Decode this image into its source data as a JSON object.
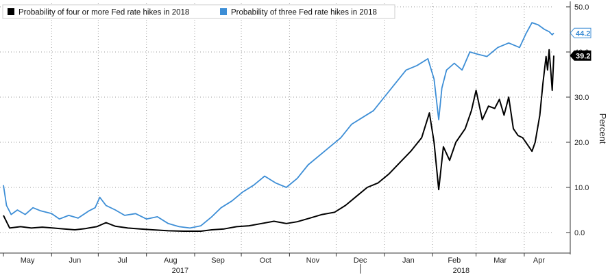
{
  "chart_data": {
    "type": "line",
    "title": "",
    "xlabel": "",
    "ylabel": "Percent",
    "ylim": [
      0,
      50
    ],
    "y_axis_side": "right",
    "y_ticks": [
      "0.0",
      "10.0",
      "20.0",
      "30.0",
      "40.0",
      "50.0"
    ],
    "x_month_labels": [
      "May",
      "Jun",
      "Jul",
      "Aug",
      "Sep",
      "Oct",
      "Nov",
      "Dec",
      "Jan",
      "Feb",
      "Mar",
      "Apr"
    ],
    "x_year_labels": [
      "2017",
      "2018"
    ],
    "grid": true,
    "legend_position": "top-left",
    "x_domain": [
      "2017-05-01",
      "2018-04-20"
    ],
    "series": [
      {
        "name": "Probability of four or more Fed rate hikes in 2018",
        "color": "#000000",
        "last_value_label": "39.2",
        "points": [
          [
            "2017-05-01",
            3.8
          ],
          [
            "2017-05-05",
            1.0
          ],
          [
            "2017-05-12",
            1.3
          ],
          [
            "2017-05-19",
            1.0
          ],
          [
            "2017-05-26",
            1.2
          ],
          [
            "2017-06-02",
            1.0
          ],
          [
            "2017-06-09",
            0.8
          ],
          [
            "2017-06-16",
            0.6
          ],
          [
            "2017-06-23",
            0.9
          ],
          [
            "2017-06-30",
            1.3
          ],
          [
            "2017-07-06",
            2.2
          ],
          [
            "2017-07-12",
            1.4
          ],
          [
            "2017-07-20",
            1.0
          ],
          [
            "2017-07-28",
            0.8
          ],
          [
            "2017-08-05",
            0.6
          ],
          [
            "2017-08-15",
            0.4
          ],
          [
            "2017-08-25",
            0.3
          ],
          [
            "2017-09-05",
            0.3
          ],
          [
            "2017-09-12",
            0.6
          ],
          [
            "2017-09-20",
            0.8
          ],
          [
            "2017-09-28",
            1.3
          ],
          [
            "2017-10-06",
            1.5
          ],
          [
            "2017-10-14",
            2.0
          ],
          [
            "2017-10-22",
            2.5
          ],
          [
            "2017-10-30",
            2.0
          ],
          [
            "2017-11-06",
            2.4
          ],
          [
            "2017-11-14",
            3.2
          ],
          [
            "2017-11-22",
            4.0
          ],
          [
            "2017-11-30",
            4.5
          ],
          [
            "2017-12-07",
            6.0
          ],
          [
            "2017-12-14",
            8.0
          ],
          [
            "2017-12-21",
            10.0
          ],
          [
            "2017-12-28",
            11.0
          ],
          [
            "2018-01-04",
            13.0
          ],
          [
            "2018-01-11",
            15.5
          ],
          [
            "2018-01-18",
            18.0
          ],
          [
            "2018-01-25",
            21.0
          ],
          [
            "2018-01-30",
            26.5
          ],
          [
            "2018-02-02",
            20.0
          ],
          [
            "2018-02-05",
            9.5
          ],
          [
            "2018-02-08",
            19.0
          ],
          [
            "2018-02-12",
            16.0
          ],
          [
            "2018-02-16",
            20.0
          ],
          [
            "2018-02-22",
            23.0
          ],
          [
            "2018-02-26",
            27.0
          ],
          [
            "2018-03-01",
            31.5
          ],
          [
            "2018-03-05",
            25.0
          ],
          [
            "2018-03-09",
            28.0
          ],
          [
            "2018-03-13",
            27.5
          ],
          [
            "2018-03-16",
            29.5
          ],
          [
            "2018-03-19",
            26.0
          ],
          [
            "2018-03-22",
            30.0
          ],
          [
            "2018-03-25",
            23.0
          ],
          [
            "2018-03-28",
            21.5
          ],
          [
            "2018-03-31",
            21.0
          ],
          [
            "2018-04-04",
            19.0
          ],
          [
            "2018-04-06",
            18.0
          ],
          [
            "2018-04-08",
            20.0
          ],
          [
            "2018-04-11",
            26.0
          ],
          [
            "2018-04-13",
            33.0
          ],
          [
            "2018-04-15",
            39.0
          ],
          [
            "2018-04-16",
            36.0
          ],
          [
            "2018-04-17",
            40.5
          ],
          [
            "2018-04-18",
            36.0
          ],
          [
            "2018-04-19",
            31.5
          ],
          [
            "2018-04-20",
            39.2
          ]
        ]
      },
      {
        "name": "Probability of three Fed rate hikes in 2018",
        "color": "#3d8ed6",
        "last_value_label": "44.2",
        "points": [
          [
            "2017-05-01",
            10.5
          ],
          [
            "2017-05-03",
            6.0
          ],
          [
            "2017-05-06",
            4.0
          ],
          [
            "2017-05-10",
            5.0
          ],
          [
            "2017-05-15",
            4.0
          ],
          [
            "2017-05-20",
            5.5
          ],
          [
            "2017-05-25",
            4.8
          ],
          [
            "2017-06-01",
            4.2
          ],
          [
            "2017-06-06",
            3.0
          ],
          [
            "2017-06-12",
            3.8
          ],
          [
            "2017-06-18",
            3.2
          ],
          [
            "2017-06-25",
            4.8
          ],
          [
            "2017-06-29",
            5.5
          ],
          [
            "2017-07-02",
            7.8
          ],
          [
            "2017-07-06",
            6.0
          ],
          [
            "2017-07-12",
            5.0
          ],
          [
            "2017-07-18",
            3.8
          ],
          [
            "2017-07-25",
            4.2
          ],
          [
            "2017-08-01",
            3.0
          ],
          [
            "2017-08-08",
            3.5
          ],
          [
            "2017-08-15",
            2.0
          ],
          [
            "2017-08-22",
            1.3
          ],
          [
            "2017-08-29",
            1.0
          ],
          [
            "2017-09-05",
            1.5
          ],
          [
            "2017-09-12",
            3.5
          ],
          [
            "2017-09-18",
            5.5
          ],
          [
            "2017-09-25",
            7.0
          ],
          [
            "2017-10-02",
            9.0
          ],
          [
            "2017-10-09",
            10.5
          ],
          [
            "2017-10-16",
            12.5
          ],
          [
            "2017-10-23",
            11.0
          ],
          [
            "2017-10-30",
            10.0
          ],
          [
            "2017-11-06",
            12.0
          ],
          [
            "2017-11-13",
            15.0
          ],
          [
            "2017-11-20",
            17.0
          ],
          [
            "2017-11-27",
            19.0
          ],
          [
            "2017-12-04",
            21.0
          ],
          [
            "2017-12-11",
            24.0
          ],
          [
            "2017-12-18",
            25.5
          ],
          [
            "2017-12-25",
            27.0
          ],
          [
            "2018-01-01",
            30.0
          ],
          [
            "2018-01-08",
            33.0
          ],
          [
            "2018-01-15",
            36.0
          ],
          [
            "2018-01-22",
            37.0
          ],
          [
            "2018-01-29",
            38.5
          ],
          [
            "2018-02-02",
            34.0
          ],
          [
            "2018-02-05",
            25.0
          ],
          [
            "2018-02-07",
            32.0
          ],
          [
            "2018-02-10",
            36.0
          ],
          [
            "2018-02-15",
            37.5
          ],
          [
            "2018-02-20",
            36.0
          ],
          [
            "2018-02-25",
            40.0
          ],
          [
            "2018-03-02",
            39.5
          ],
          [
            "2018-03-08",
            39.0
          ],
          [
            "2018-03-15",
            41.0
          ],
          [
            "2018-03-22",
            42.0
          ],
          [
            "2018-03-29",
            41.0
          ],
          [
            "2018-04-02",
            44.0
          ],
          [
            "2018-04-06",
            46.5
          ],
          [
            "2018-04-10",
            46.0
          ],
          [
            "2018-04-14",
            45.0
          ],
          [
            "2018-04-17",
            44.5
          ],
          [
            "2018-04-19",
            43.8
          ],
          [
            "2018-04-20",
            44.2
          ]
        ]
      }
    ]
  }
}
